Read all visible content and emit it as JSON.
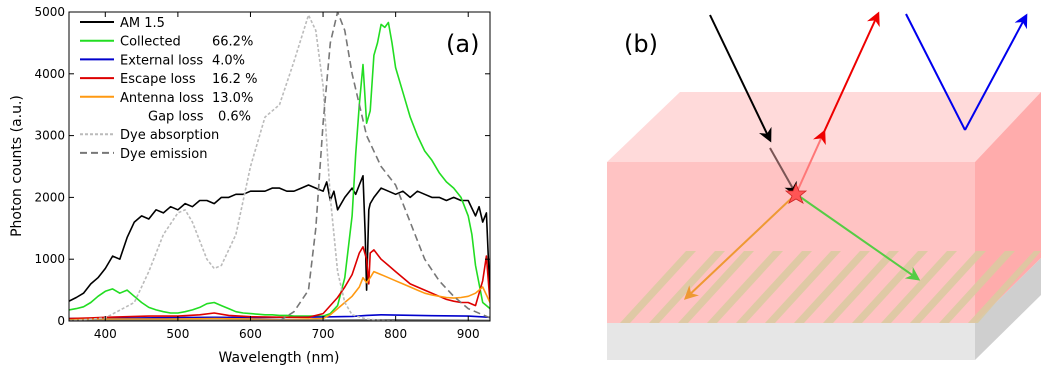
{
  "panel_a": {
    "label": "(a)",
    "legend": [
      {
        "name": "AM 1.5",
        "value": "",
        "color": "#000000",
        "dash": ""
      },
      {
        "name": "Collected",
        "value": "66.2%",
        "color": "#22dd22",
        "dash": ""
      },
      {
        "name": "External loss",
        "value": "4.0%",
        "color": "#0000cc",
        "dash": ""
      },
      {
        "name": "Escape loss",
        "value": "16.2 %",
        "color": "#dd0000",
        "dash": ""
      },
      {
        "name": "Antenna loss",
        "value": "13.0%",
        "color": "#ff9911",
        "dash": ""
      },
      {
        "name": "Gap loss",
        "value": "0.6%",
        "color": "#ffffff",
        "dash": ""
      },
      {
        "name": "Dye absorption",
        "value": "",
        "color": "#bbbbbb",
        "dash": "3,2"
      },
      {
        "name": "Dye emission",
        "value": "",
        "color": "#777777",
        "dash": "7,4"
      }
    ]
  },
  "panel_b": {
    "label": "(b)",
    "colors": {
      "slab_front": "#ffc3c3",
      "slab_top": "#ffdada",
      "slab_side": "#ffacac",
      "grating": "#d9caa0",
      "substrate": "#e6e6e6",
      "ray_black": "#000000",
      "ray_red": "#ee0000",
      "ray_blue": "#0000ee",
      "ray_green": "#55cc44",
      "ray_orange": "#ee9933"
    }
  },
  "chart_data": {
    "type": "line",
    "xlabel": "Wavelength (nm)",
    "ylabel": "Photon counts (a.u.)",
    "xlim": [
      350,
      930
    ],
    "ylim": [
      0,
      5000
    ],
    "xticks": [
      400,
      500,
      600,
      700,
      800,
      900
    ],
    "yticks": [
      0,
      1000,
      2000,
      3000,
      4000,
      5000
    ],
    "series": [
      {
        "name": "AM 1.5",
        "color": "#000000",
        "dash": "",
        "x": [
          350,
          360,
          370,
          380,
          390,
          400,
          410,
          420,
          430,
          440,
          450,
          460,
          470,
          480,
          490,
          500,
          510,
          520,
          530,
          540,
          550,
          560,
          570,
          580,
          590,
          600,
          610,
          620,
          630,
          640,
          650,
          660,
          670,
          680,
          690,
          700,
          705,
          710,
          715,
          720,
          730,
          740,
          745,
          750,
          755,
          758,
          760,
          763,
          765,
          770,
          780,
          790,
          800,
          810,
          820,
          830,
          840,
          850,
          860,
          870,
          880,
          890,
          900,
          910,
          915,
          920,
          925,
          930
        ],
        "y": [
          320,
          380,
          450,
          600,
          700,
          850,
          1050,
          1000,
          1350,
          1600,
          1700,
          1650,
          1800,
          1750,
          1850,
          1800,
          1900,
          1850,
          1950,
          1950,
          1900,
          2000,
          2000,
          2050,
          2050,
          2100,
          2100,
          2100,
          2150,
          2150,
          2100,
          2100,
          2150,
          2200,
          2150,
          2100,
          2250,
          1950,
          2100,
          1800,
          2000,
          2150,
          2050,
          2200,
          2350,
          1400,
          500,
          1800,
          1900,
          2000,
          2150,
          2100,
          2050,
          2100,
          2000,
          2100,
          2050,
          2000,
          2000,
          1950,
          2000,
          1950,
          1950,
          1700,
          1850,
          1600,
          1750,
          400
        ]
      },
      {
        "name": "Collected",
        "color": "#22dd22",
        "dash": "",
        "x": [
          350,
          360,
          370,
          380,
          390,
          400,
          410,
          420,
          430,
          440,
          450,
          460,
          470,
          480,
          490,
          500,
          510,
          520,
          530,
          540,
          550,
          560,
          570,
          580,
          590,
          600,
          610,
          620,
          630,
          640,
          650,
          660,
          670,
          680,
          690,
          700,
          710,
          720,
          730,
          740,
          745,
          750,
          755,
          760,
          765,
          770,
          775,
          780,
          785,
          790,
          795,
          800,
          810,
          820,
          830,
          840,
          850,
          860,
          870,
          880,
          890,
          900,
          905,
          910,
          920,
          930
        ],
        "y": [
          180,
          200,
          230,
          300,
          400,
          480,
          520,
          450,
          500,
          400,
          300,
          220,
          180,
          150,
          130,
          130,
          150,
          180,
          220,
          280,
          300,
          250,
          200,
          150,
          130,
          120,
          110,
          100,
          100,
          90,
          90,
          80,
          80,
          80,
          80,
          80,
          120,
          250,
          700,
          1700,
          2700,
          3500,
          4150,
          3200,
          3400,
          4300,
          4500,
          4800,
          4750,
          4830,
          4500,
          4100,
          3700,
          3300,
          3000,
          2750,
          2600,
          2400,
          2250,
          2150,
          2000,
          1700,
          1400,
          900,
          300,
          200
        ]
      },
      {
        "name": "External loss",
        "color": "#0000cc",
        "dash": "",
        "x": [
          350,
          400,
          450,
          500,
          550,
          600,
          650,
          700,
          720,
          740,
          760,
          780,
          800,
          850,
          900,
          930
        ],
        "y": [
          40,
          45,
          50,
          55,
          60,
          55,
          60,
          65,
          70,
          75,
          90,
          100,
          95,
          85,
          80,
          60
        ]
      },
      {
        "name": "Escape loss",
        "color": "#dd0000",
        "dash": "",
        "x": [
          350,
          380,
          400,
          430,
          460,
          500,
          530,
          550,
          570,
          600,
          650,
          680,
          700,
          710,
          720,
          730,
          740,
          750,
          755,
          760,
          763,
          765,
          770,
          780,
          790,
          800,
          810,
          820,
          830,
          840,
          850,
          860,
          870,
          880,
          890,
          900,
          910,
          920,
          925,
          930
        ],
        "y": [
          40,
          50,
          60,
          70,
          80,
          80,
          100,
          130,
          90,
          70,
          60,
          60,
          120,
          250,
          380,
          550,
          750,
          1100,
          1200,
          1000,
          600,
          1100,
          1150,
          1000,
          900,
          800,
          700,
          600,
          550,
          500,
          450,
          400,
          350,
          320,
          300,
          300,
          250,
          650,
          1050,
          300
        ]
      },
      {
        "name": "Antenna loss",
        "color": "#ff9911",
        "dash": "",
        "x": [
          350,
          400,
          450,
          500,
          550,
          600,
          650,
          700,
          710,
          720,
          730,
          740,
          750,
          755,
          760,
          765,
          770,
          780,
          790,
          800,
          810,
          820,
          830,
          840,
          850,
          860,
          870,
          880,
          890,
          900,
          910,
          920,
          930
        ],
        "y": [
          20,
          30,
          30,
          30,
          40,
          30,
          20,
          40,
          100,
          200,
          300,
          400,
          550,
          700,
          620,
          700,
          800,
          750,
          700,
          650,
          600,
          550,
          500,
          450,
          420,
          400,
          380,
          370,
          380,
          400,
          450,
          550,
          300
        ]
      },
      {
        "name": "Gap loss",
        "color": "#777777",
        "dash": "",
        "x": [
          350,
          500,
          700,
          800,
          930
        ],
        "y": [
          10,
          10,
          15,
          20,
          10
        ]
      },
      {
        "name": "Dye absorption",
        "color": "#bbbbbb",
        "dash": "3,2",
        "x": [
          350,
          400,
          440,
          460,
          480,
          500,
          510,
          520,
          540,
          550,
          560,
          580,
          600,
          620,
          640,
          660,
          680,
          690,
          700,
          710,
          720,
          730,
          740,
          760,
          780,
          800
        ],
        "y": [
          0,
          50,
          300,
          800,
          1400,
          1750,
          1800,
          1600,
          1000,
          850,
          900,
          1400,
          2500,
          3300,
          3500,
          4200,
          4950,
          4700,
          3800,
          2000,
          800,
          300,
          100,
          30,
          10,
          0
        ]
      },
      {
        "name": "Dye emission",
        "color": "#777777",
        "dash": "7,4",
        "x": [
          640,
          660,
          680,
          690,
          700,
          710,
          720,
          730,
          740,
          760,
          780,
          800,
          820,
          840,
          860,
          880,
          900,
          920,
          930
        ],
        "y": [
          0,
          150,
          500,
          1500,
          3200,
          4500,
          5000,
          4700,
          4000,
          3000,
          2500,
          2200,
          1600,
          1000,
          650,
          400,
          200,
          100,
          50
        ]
      }
    ]
  }
}
